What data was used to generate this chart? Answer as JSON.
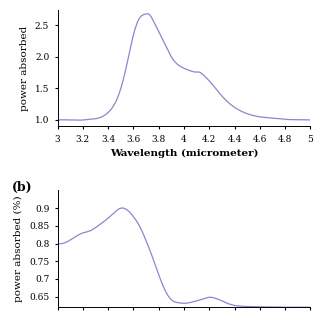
{
  "top_plot": {
    "xlabel": "Wavelength (micrometer)",
    "ylabel": "power absorbed",
    "xlim": [
      3.0,
      5.0
    ],
    "ylim": [
      0.9,
      2.75
    ],
    "yticks": [
      1.0,
      1.5,
      2.0,
      2.5
    ],
    "xticks": [
      3.0,
      3.2,
      3.4,
      3.6,
      3.8,
      4.0,
      4.2,
      4.4,
      4.6,
      4.8,
      5.0
    ],
    "xtick_labels": [
      "3",
      "3.2",
      "3.4",
      "3.6",
      "3.8",
      "4",
      "4.2",
      "4.4",
      "4.6",
      "4.8",
      "5"
    ],
    "line_color": "#8888cc",
    "curve_x": [
      3.0,
      3.1,
      3.2,
      3.25,
      3.3,
      3.35,
      3.4,
      3.45,
      3.5,
      3.55,
      3.6,
      3.65,
      3.7,
      3.72,
      3.75,
      3.8,
      3.85,
      3.9,
      3.95,
      4.0,
      4.05,
      4.1,
      4.12,
      4.15,
      4.2,
      4.3,
      4.4,
      4.5,
      4.6,
      4.7,
      4.8,
      4.9,
      5.0
    ],
    "curve_y": [
      1.0,
      1.0,
      1.0,
      1.01,
      1.02,
      1.05,
      1.12,
      1.25,
      1.5,
      1.9,
      2.35,
      2.62,
      2.68,
      2.68,
      2.6,
      2.4,
      2.2,
      2.0,
      1.88,
      1.82,
      1.78,
      1.76,
      1.76,
      1.72,
      1.62,
      1.38,
      1.2,
      1.1,
      1.05,
      1.03,
      1.01,
      1.005,
      1.0
    ]
  },
  "bottom_plot": {
    "label": "(b)",
    "ylabel": "power absorbed (%)",
    "xlim": [
      3.0,
      5.0
    ],
    "ylim": [
      0.62,
      0.95
    ],
    "yticks": [
      0.65,
      0.7,
      0.75,
      0.8,
      0.85,
      0.9
    ],
    "line_color": "#8888cc",
    "curve_x": [
      3.0,
      3.1,
      3.2,
      3.25,
      3.3,
      3.35,
      3.4,
      3.45,
      3.5,
      3.55,
      3.6,
      3.65,
      3.7,
      3.75,
      3.8,
      3.85,
      3.9,
      3.95,
      4.0,
      4.1,
      4.15,
      4.2,
      4.25,
      4.3,
      4.35,
      4.4,
      4.5,
      4.6,
      4.7,
      4.8,
      4.9,
      5.0
    ],
    "curve_y": [
      0.8,
      0.81,
      0.83,
      0.835,
      0.845,
      0.858,
      0.872,
      0.888,
      0.9,
      0.895,
      0.876,
      0.848,
      0.808,
      0.762,
      0.712,
      0.668,
      0.641,
      0.633,
      0.631,
      0.638,
      0.643,
      0.648,
      0.645,
      0.638,
      0.63,
      0.625,
      0.622,
      0.621,
      0.621,
      0.62,
      0.62,
      0.62
    ]
  },
  "bg_color": "#ffffff",
  "font_family": "serif",
  "tick_fontsize": 6.5,
  "label_fontsize": 7.5,
  "xlabel_fontweight": "bold"
}
